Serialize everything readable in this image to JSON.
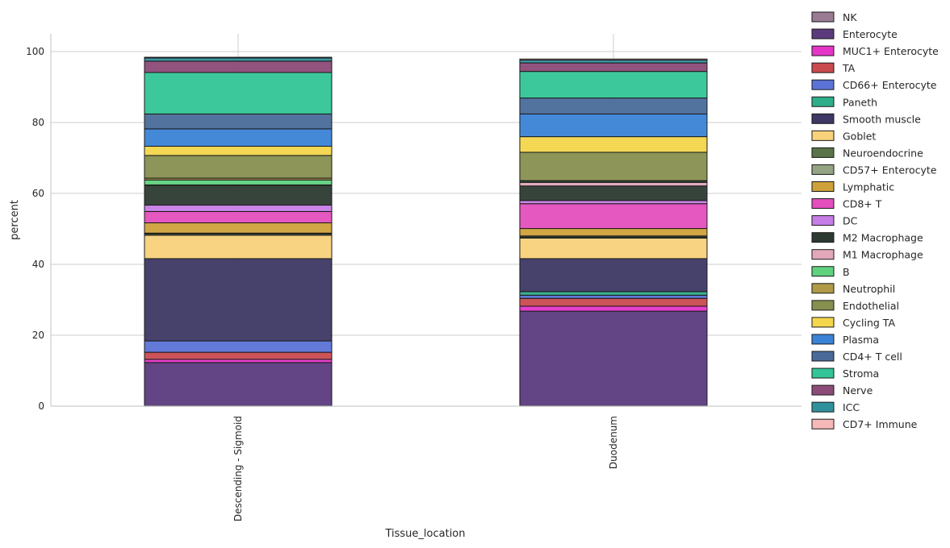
{
  "chart_data": {
    "type": "bar",
    "stacked": true,
    "categories": [
      "Descending - Sigmoid",
      "Duodenum"
    ],
    "xlabel": "Tissue_location",
    "ylabel": "percent",
    "ylim": [
      0,
      105
    ],
    "yticks": [
      0,
      20,
      40,
      60,
      80,
      100
    ],
    "grid": true,
    "legend_position": "right",
    "series": [
      {
        "name": "NK",
        "color": "#9b7b93",
        "values": [
          0.1,
          0.1
        ]
      },
      {
        "name": "Enterocyte",
        "color": "#5b3a7e",
        "values": [
          12.2,
          26.7
        ]
      },
      {
        "name": "MUC1+ Enterocyte",
        "color": "#e535c9",
        "values": [
          0.9,
          1.4
        ]
      },
      {
        "name": "TA",
        "color": "#c94a4f",
        "values": [
          2.0,
          2.2
        ]
      },
      {
        "name": "CD66+ Enterocyte",
        "color": "#5b73d6",
        "values": [
          3.2,
          0.9
        ]
      },
      {
        "name": "Paneth",
        "color": "#2fae8a",
        "values": [
          0.0,
          1.0
        ]
      },
      {
        "name": "Smooth muscle",
        "color": "#3d3864",
        "values": [
          23.2,
          9.3
        ]
      },
      {
        "name": "Goblet",
        "color": "#f8d17b",
        "values": [
          6.6,
          5.8
        ]
      },
      {
        "name": "Neuroendocrine",
        "color": "#5a7348",
        "values": [
          0.4,
          0.3
        ]
      },
      {
        "name": "CD57+ Enterocyte",
        "color": "#93a383",
        "values": [
          0.2,
          0.3
        ]
      },
      {
        "name": "Lymphatic",
        "color": "#cfa13a",
        "values": [
          2.9,
          2.1
        ]
      },
      {
        "name": "CD8+ T",
        "color": "#e34fbd",
        "values": [
          3.2,
          7.0
        ]
      },
      {
        "name": "DC",
        "color": "#c67ee6",
        "values": [
          1.8,
          0.9
        ]
      },
      {
        "name": "M2 Macrophage",
        "color": "#2c3a31",
        "values": [
          5.6,
          4.1
        ]
      },
      {
        "name": "M1 Macrophage",
        "color": "#e3a7ba",
        "values": [
          0.1,
          1.0
        ]
      },
      {
        "name": "B",
        "color": "#5fd17f",
        "values": [
          1.4,
          0.3
        ]
      },
      {
        "name": "Neutrophil",
        "color": "#b09a48",
        "values": [
          0.5,
          0.2
        ]
      },
      {
        "name": "Endothelial",
        "color": "#878f4f",
        "values": [
          6.4,
          8.0
        ]
      },
      {
        "name": "Cycling TA",
        "color": "#f3d64b",
        "values": [
          2.6,
          4.4
        ]
      },
      {
        "name": "Plasma",
        "color": "#3a83d6",
        "values": [
          4.9,
          6.4
        ]
      },
      {
        "name": "CD4+ T cell",
        "color": "#4a6b9a",
        "values": [
          4.2,
          4.5
        ]
      },
      {
        "name": "Stroma",
        "color": "#33c597",
        "values": [
          11.7,
          7.5
        ]
      },
      {
        "name": "Nerve",
        "color": "#8c4b78",
        "values": [
          3.2,
          2.4
        ]
      },
      {
        "name": "ICC",
        "color": "#30919d",
        "values": [
          0.9,
          0.8
        ]
      },
      {
        "name": "CD7+ Immune",
        "color": "#f7b8b8",
        "values": [
          0.2,
          0.3
        ]
      }
    ]
  }
}
